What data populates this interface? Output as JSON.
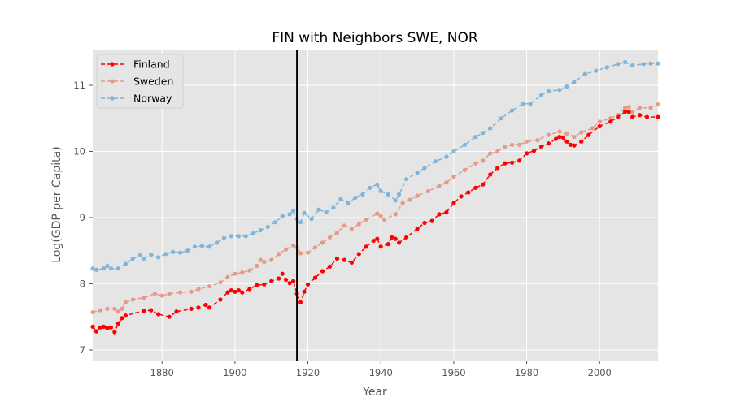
{
  "chart_data": {
    "type": "line",
    "title": "FIN with Neighbors SWE, NOR",
    "xlabel": "Year",
    "ylabel": "Log(GDP per Capita)",
    "xlim": [
      1861,
      2016
    ],
    "ylim": [
      6.84,
      11.54
    ],
    "xticks": [
      1880,
      1900,
      1920,
      1940,
      1960,
      1980,
      2000
    ],
    "yticks": [
      7,
      8,
      9,
      10,
      11
    ],
    "grid": true,
    "legend_position": "top-left",
    "vline": {
      "x": 1917
    },
    "series": [
      {
        "name": "Finland",
        "color": "#ff0000",
        "opacity": 1.0,
        "points": [
          [
            1861,
            7.35
          ],
          [
            1862,
            7.28
          ],
          [
            1863,
            7.34
          ],
          [
            1864,
            7.35
          ],
          [
            1865,
            7.33
          ],
          [
            1866,
            7.34
          ],
          [
            1867,
            7.27
          ],
          [
            1868,
            7.4
          ],
          [
            1869,
            7.48
          ],
          [
            1870,
            7.52
          ],
          [
            1875,
            7.59
          ],
          [
            1877,
            7.6
          ],
          [
            1879,
            7.54
          ],
          [
            1882,
            7.5
          ],
          [
            1884,
            7.58
          ],
          [
            1888,
            7.62
          ],
          [
            1890,
            7.64
          ],
          [
            1892,
            7.68
          ],
          [
            1893,
            7.64
          ],
          [
            1896,
            7.76
          ],
          [
            1898,
            7.87
          ],
          [
            1899,
            7.9
          ],
          [
            1900,
            7.88
          ],
          [
            1901,
            7.9
          ],
          [
            1902,
            7.87
          ],
          [
            1904,
            7.92
          ],
          [
            1906,
            7.98
          ],
          [
            1908,
            7.99
          ],
          [
            1910,
            8.04
          ],
          [
            1912,
            8.08
          ],
          [
            1913,
            8.15
          ],
          [
            1914,
            8.06
          ],
          [
            1915,
            8.01
          ],
          [
            1916,
            8.04
          ],
          [
            1917,
            7.85
          ],
          [
            1918,
            7.72
          ],
          [
            1919,
            7.88
          ],
          [
            1920,
            7.99
          ],
          [
            1922,
            8.09
          ],
          [
            1924,
            8.19
          ],
          [
            1926,
            8.26
          ],
          [
            1928,
            8.38
          ],
          [
            1930,
            8.36
          ],
          [
            1932,
            8.32
          ],
          [
            1934,
            8.45
          ],
          [
            1936,
            8.56
          ],
          [
            1938,
            8.65
          ],
          [
            1939,
            8.68
          ],
          [
            1940,
            8.56
          ],
          [
            1942,
            8.6
          ],
          [
            1943,
            8.7
          ],
          [
            1944,
            8.68
          ],
          [
            1945,
            8.62
          ],
          [
            1947,
            8.7
          ],
          [
            1950,
            8.83
          ],
          [
            1952,
            8.92
          ],
          [
            1954,
            8.95
          ],
          [
            1956,
            9.05
          ],
          [
            1958,
            9.08
          ],
          [
            1960,
            9.22
          ],
          [
            1962,
            9.32
          ],
          [
            1964,
            9.38
          ],
          [
            1966,
            9.45
          ],
          [
            1968,
            9.5
          ],
          [
            1970,
            9.65
          ],
          [
            1972,
            9.75
          ],
          [
            1974,
            9.82
          ],
          [
            1976,
            9.83
          ],
          [
            1978,
            9.86
          ],
          [
            1980,
            9.97
          ],
          [
            1982,
            10.01
          ],
          [
            1984,
            10.07
          ],
          [
            1986,
            10.12
          ],
          [
            1988,
            10.19
          ],
          [
            1989,
            10.22
          ],
          [
            1990,
            10.21
          ],
          [
            1991,
            10.15
          ],
          [
            1992,
            10.1
          ],
          [
            1993,
            10.09
          ],
          [
            1995,
            10.15
          ],
          [
            1997,
            10.25
          ],
          [
            2000,
            10.38
          ],
          [
            2003,
            10.45
          ],
          [
            2005,
            10.52
          ],
          [
            2007,
            10.6
          ],
          [
            2008,
            10.6
          ],
          [
            2009,
            10.52
          ],
          [
            2011,
            10.55
          ],
          [
            2013,
            10.52
          ],
          [
            2016,
            10.52
          ]
        ]
      },
      {
        "name": "Sweden",
        "color": "#e5826a",
        "opacity": 0.75,
        "points": [
          [
            1861,
            7.57
          ],
          [
            1863,
            7.6
          ],
          [
            1865,
            7.62
          ],
          [
            1867,
            7.62
          ],
          [
            1868,
            7.58
          ],
          [
            1869,
            7.62
          ],
          [
            1870,
            7.72
          ],
          [
            1872,
            7.76
          ],
          [
            1875,
            7.79
          ],
          [
            1878,
            7.85
          ],
          [
            1880,
            7.82
          ],
          [
            1882,
            7.85
          ],
          [
            1885,
            7.87
          ],
          [
            1888,
            7.88
          ],
          [
            1890,
            7.92
          ],
          [
            1893,
            7.96
          ],
          [
            1896,
            8.02
          ],
          [
            1898,
            8.1
          ],
          [
            1900,
            8.15
          ],
          [
            1902,
            8.17
          ],
          [
            1904,
            8.2
          ],
          [
            1906,
            8.27
          ],
          [
            1907,
            8.36
          ],
          [
            1908,
            8.33
          ],
          [
            1910,
            8.36
          ],
          [
            1912,
            8.45
          ],
          [
            1914,
            8.52
          ],
          [
            1916,
            8.58
          ],
          [
            1917,
            8.55
          ],
          [
            1918,
            8.46
          ],
          [
            1920,
            8.47
          ],
          [
            1922,
            8.55
          ],
          [
            1924,
            8.62
          ],
          [
            1926,
            8.7
          ],
          [
            1928,
            8.77
          ],
          [
            1930,
            8.88
          ],
          [
            1932,
            8.83
          ],
          [
            1934,
            8.9
          ],
          [
            1936,
            8.97
          ],
          [
            1939,
            9.06
          ],
          [
            1940,
            9.02
          ],
          [
            1941,
            8.97
          ],
          [
            1944,
            9.05
          ],
          [
            1946,
            9.22
          ],
          [
            1948,
            9.27
          ],
          [
            1950,
            9.33
          ],
          [
            1953,
            9.4
          ],
          [
            1956,
            9.48
          ],
          [
            1958,
            9.53
          ],
          [
            1960,
            9.62
          ],
          [
            1963,
            9.72
          ],
          [
            1966,
            9.82
          ],
          [
            1968,
            9.86
          ],
          [
            1970,
            9.97
          ],
          [
            1972,
            10.0
          ],
          [
            1974,
            10.07
          ],
          [
            1976,
            10.1
          ],
          [
            1978,
            10.1
          ],
          [
            1980,
            10.15
          ],
          [
            1983,
            10.17
          ],
          [
            1986,
            10.25
          ],
          [
            1989,
            10.3
          ],
          [
            1991,
            10.27
          ],
          [
            1993,
            10.22
          ],
          [
            1995,
            10.29
          ],
          [
            1998,
            10.35
          ],
          [
            2000,
            10.45
          ],
          [
            2003,
            10.5
          ],
          [
            2005,
            10.55
          ],
          [
            2007,
            10.66
          ],
          [
            2008,
            10.67
          ],
          [
            2009,
            10.6
          ],
          [
            2011,
            10.66
          ],
          [
            2014,
            10.66
          ],
          [
            2016,
            10.71
          ]
        ]
      },
      {
        "name": "Norway",
        "color": "#5da5d8",
        "opacity": 0.75,
        "points": [
          [
            1861,
            8.23
          ],
          [
            1862,
            8.21
          ],
          [
            1864,
            8.23
          ],
          [
            1865,
            8.27
          ],
          [
            1866,
            8.23
          ],
          [
            1868,
            8.23
          ],
          [
            1870,
            8.3
          ],
          [
            1872,
            8.38
          ],
          [
            1874,
            8.43
          ],
          [
            1875,
            8.38
          ],
          [
            1877,
            8.44
          ],
          [
            1879,
            8.4
          ],
          [
            1881,
            8.45
          ],
          [
            1883,
            8.48
          ],
          [
            1885,
            8.47
          ],
          [
            1887,
            8.5
          ],
          [
            1889,
            8.56
          ],
          [
            1891,
            8.57
          ],
          [
            1893,
            8.56
          ],
          [
            1895,
            8.62
          ],
          [
            1897,
            8.69
          ],
          [
            1899,
            8.72
          ],
          [
            1901,
            8.72
          ],
          [
            1903,
            8.72
          ],
          [
            1905,
            8.76
          ],
          [
            1907,
            8.81
          ],
          [
            1909,
            8.86
          ],
          [
            1911,
            8.93
          ],
          [
            1913,
            9.02
          ],
          [
            1915,
            9.05
          ],
          [
            1916,
            9.1
          ],
          [
            1917,
            8.98
          ],
          [
            1918,
            8.93
          ],
          [
            1919,
            9.07
          ],
          [
            1921,
            8.98
          ],
          [
            1923,
            9.12
          ],
          [
            1925,
            9.08
          ],
          [
            1927,
            9.15
          ],
          [
            1929,
            9.28
          ],
          [
            1931,
            9.22
          ],
          [
            1933,
            9.3
          ],
          [
            1935,
            9.35
          ],
          [
            1937,
            9.45
          ],
          [
            1939,
            9.5
          ],
          [
            1940,
            9.4
          ],
          [
            1942,
            9.35
          ],
          [
            1944,
            9.26
          ],
          [
            1945,
            9.35
          ],
          [
            1947,
            9.58
          ],
          [
            1950,
            9.68
          ],
          [
            1952,
            9.75
          ],
          [
            1955,
            9.85
          ],
          [
            1958,
            9.92
          ],
          [
            1960,
            10.0
          ],
          [
            1963,
            10.1
          ],
          [
            1966,
            10.22
          ],
          [
            1968,
            10.28
          ],
          [
            1970,
            10.35
          ],
          [
            1973,
            10.5
          ],
          [
            1976,
            10.62
          ],
          [
            1979,
            10.72
          ],
          [
            1981,
            10.72
          ],
          [
            1984,
            10.85
          ],
          [
            1986,
            10.91
          ],
          [
            1989,
            10.93
          ],
          [
            1991,
            10.98
          ],
          [
            1993,
            11.05
          ],
          [
            1996,
            11.17
          ],
          [
            1999,
            11.22
          ],
          [
            2002,
            11.27
          ],
          [
            2005,
            11.32
          ],
          [
            2007,
            11.35
          ],
          [
            2009,
            11.3
          ],
          [
            2012,
            11.32
          ],
          [
            2014,
            11.33
          ],
          [
            2016,
            11.33
          ]
        ]
      }
    ]
  }
}
